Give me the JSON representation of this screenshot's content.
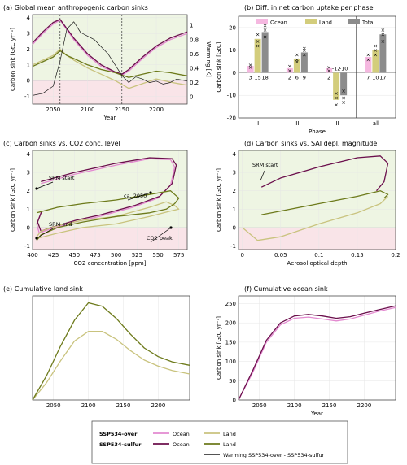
{
  "colors": {
    "ocean_over": "#e38ad0",
    "ocean_sulfur": "#6b0f4c",
    "land_over": "#c9c37e",
    "land_sulfur": "#6d7a1b",
    "warming": "#1a1a1a",
    "bg_green": "#eef5e3",
    "bg_pink": "#f9e4e8",
    "bar_ocean": "#f5b8e0",
    "bar_land": "#d3cd7c",
    "bar_total": "#8c8c8c"
  },
  "chart_data": [
    {
      "panel": "a",
      "type": "line",
      "title": "(a) Global mean anthropogenic carbon sinks",
      "xlabel": "Year",
      "ylabel": "Carbon sink [GtC yr⁻¹]",
      "ylabel_right": "Warming [K]",
      "xlim": [
        2020,
        2245
      ],
      "ylim": [
        -1.5,
        4.2
      ],
      "ylim_right": [
        -0.1,
        1.15
      ],
      "xticks": [
        "2050",
        "2100",
        "2150",
        "2200"
      ],
      "yticks": [
        "-1",
        "0",
        "1",
        "2",
        "3",
        "4"
      ],
      "yticks_right": [
        "0",
        "0.2",
        "0.4",
        "0.6",
        "0.8",
        "1"
      ],
      "vlines": [
        2060,
        2150
      ],
      "series": [
        {
          "name": "Ocean (SSP534-over)",
          "key": "ocean_over",
          "x": [
            2020,
            2035,
            2050,
            2060,
            2080,
            2100,
            2120,
            2140,
            2150,
            2160,
            2180,
            2200,
            2220,
            2245
          ],
          "y": [
            2.3,
            3.0,
            3.6,
            3.85,
            2.6,
            1.6,
            0.9,
            0.5,
            0.35,
            0.6,
            1.4,
            2.1,
            2.6,
            3.0
          ]
        },
        {
          "name": "Ocean (SSP534-sulfur)",
          "key": "ocean_sulfur",
          "x": [
            2020,
            2035,
            2050,
            2060,
            2080,
            2100,
            2120,
            2140,
            2150,
            2160,
            2180,
            2200,
            2220,
            2245
          ],
          "y": [
            2.4,
            3.1,
            3.7,
            3.9,
            2.7,
            1.7,
            1.0,
            0.55,
            0.4,
            0.7,
            1.5,
            2.2,
            2.7,
            3.1
          ]
        },
        {
          "name": "Land (SSP534-over)",
          "key": "land_over",
          "x": [
            2020,
            2035,
            2050,
            2060,
            2070,
            2080,
            2100,
            2120,
            2140,
            2160,
            2180,
            2200,
            2220,
            2245
          ],
          "y": [
            1.0,
            1.3,
            1.6,
            2.0,
            1.6,
            1.3,
            0.8,
            0.4,
            0.0,
            -0.5,
            -0.2,
            0.1,
            -0.1,
            -0.3
          ]
        },
        {
          "name": "Land (SSP534-sulfur)",
          "key": "land_sulfur",
          "x": [
            2020,
            2035,
            2050,
            2060,
            2070,
            2080,
            2100,
            2120,
            2140,
            2160,
            2180,
            2200,
            2220,
            2245
          ],
          "y": [
            0.9,
            1.2,
            1.5,
            1.9,
            1.6,
            1.4,
            1.0,
            0.7,
            0.5,
            0.2,
            0.4,
            0.6,
            0.5,
            0.3
          ]
        },
        {
          "name": "Warming SSP534-over - SSP534-sulfur",
          "key": "warming",
          "axis": "right",
          "x": [
            2020,
            2035,
            2050,
            2060,
            2070,
            2080,
            2090,
            2100,
            2110,
            2120,
            2130,
            2140,
            2150,
            2160,
            2170,
            2180,
            2190,
            2200,
            2210,
            2220,
            2230,
            2245
          ],
          "y": [
            0.02,
            0.05,
            0.15,
            0.5,
            0.95,
            1.05,
            0.9,
            0.85,
            0.8,
            0.7,
            0.6,
            0.45,
            0.3,
            0.2,
            0.28,
            0.25,
            0.2,
            0.22,
            0.18,
            0.2,
            0.25,
            0.22
          ]
        }
      ]
    },
    {
      "panel": "b",
      "type": "bar",
      "title": "(b) Diff. in net carbon uptake per phase",
      "xlabel": "Phase",
      "ylabel": "Carbon sink [GtC]",
      "ylim": [
        -20,
        25
      ],
      "yticks": [
        "-20",
        "-10",
        "0",
        "10",
        "20"
      ],
      "categories": [
        "I",
        "II",
        "III",
        "all"
      ],
      "legend": [
        "Ocean",
        "Land",
        "Total"
      ],
      "series": [
        {
          "name": "Ocean",
          "key": "bar_ocean",
          "values": [
            3,
            2,
            2,
            7
          ],
          "labels": [
            "3",
            "2",
            "2",
            "7"
          ]
        },
        {
          "name": "Land",
          "key": "bar_land",
          "values": [
            15,
            6,
            -12,
            10
          ],
          "labels": [
            "15",
            "6",
            "-12",
            "10"
          ]
        },
        {
          "name": "Total",
          "key": "bar_total",
          "values": [
            18,
            9,
            -10,
            17
          ],
          "labels": [
            "18",
            "9",
            "-10",
            "17"
          ]
        }
      ],
      "markers": [
        [
          [
            3.5,
            2.5
          ],
          [
            12,
            17,
            14
          ],
          [
            16,
            21,
            19
          ]
        ],
        [
          [
            3,
            1
          ],
          [
            5,
            8,
            6
          ],
          [
            8,
            11,
            10
          ]
        ],
        [
          [
            1,
            2.5
          ],
          [
            -9,
            -14,
            -11
          ],
          [
            -8,
            -13,
            -11
          ]
        ],
        [
          [
            6,
            8
          ],
          [
            8,
            12,
            10
          ],
          [
            14,
            19,
            17
          ]
        ]
      ]
    },
    {
      "panel": "c",
      "type": "line",
      "title": "(c) Carbon sinks vs. CO2 conc. level",
      "xlabel": "CO2 concentration [ppm]",
      "ylabel": "Carbon sink [GtC yr⁻¹]",
      "xlim": [
        400,
        585
      ],
      "ylim": [
        -1.2,
        4.2
      ],
      "xticks": [
        "400",
        "425",
        "450",
        "475",
        "500",
        "525",
        "550",
        "575"
      ],
      "yticks": [
        "-1",
        "0",
        "1",
        "2",
        "3",
        "4"
      ],
      "annotations": [
        "SRM start",
        "SRM end",
        "ca. 2050",
        "CO2 peak"
      ],
      "series": [
        {
          "name": "Ocean (SSP534-over)",
          "key": "ocean_over",
          "x": [
            410,
            450,
            500,
            540,
            565,
            570,
            565,
            550,
            520,
            480,
            450,
            420,
            408,
            405,
            410
          ],
          "y": [
            2.4,
            2.9,
            3.4,
            3.75,
            3.7,
            3.3,
            2.3,
            1.6,
            1.1,
            0.6,
            0.3,
            -0.1,
            -0.3,
            0.2,
            0.8
          ]
        },
        {
          "name": "Ocean (SSP534-sulfur)",
          "key": "ocean_sulfur",
          "x": [
            410,
            450,
            500,
            540,
            567,
            572,
            567,
            552,
            522,
            482,
            452,
            422,
            410,
            406,
            411
          ],
          "y": [
            2.5,
            3.0,
            3.5,
            3.8,
            3.75,
            3.4,
            2.4,
            1.7,
            1.2,
            0.7,
            0.4,
            0.0,
            -0.2,
            0.3,
            0.9
          ]
        },
        {
          "name": "Land (SSP534-over)",
          "key": "land_over",
          "x": [
            405,
            430,
            460,
            500,
            540,
            565,
            575,
            570,
            560,
            540,
            500,
            460,
            430,
            410,
            405
          ],
          "y": [
            -0.6,
            -0.3,
            0.0,
            0.2,
            0.6,
            0.9,
            1.0,
            1.2,
            1.4,
            1.1,
            0.6,
            0.4,
            0.1,
            -0.2,
            -0.5
          ]
        },
        {
          "name": "Land (SSP534-sulfur)",
          "key": "land_sulfur",
          "x": [
            405,
            430,
            460,
            500,
            540,
            565,
            575,
            570,
            560,
            540,
            500,
            460,
            430,
            410,
            405
          ],
          "y": [
            0.8,
            1.1,
            1.3,
            1.5,
            1.8,
            2.0,
            1.6,
            1.3,
            1.0,
            0.8,
            0.6,
            0.3,
            0.0,
            -0.4,
            -0.7
          ]
        }
      ]
    },
    {
      "panel": "d",
      "type": "line",
      "title": "(d) Carbon sinks vs. SAI depl. magnitude",
      "xlabel": "Aerosol optical depth",
      "ylabel": "Carbon sink [GtC yr⁻¹]",
      "xlim": [
        -0.005,
        0.2
      ],
      "ylim": [
        -1.2,
        4.2
      ],
      "xticks": [
        "0",
        "0.05",
        "0.1",
        "0.15",
        "0.2"
      ],
      "yticks": [
        "-1",
        "0",
        "1",
        "2",
        "3",
        "4"
      ],
      "annotations": [
        "SRM start"
      ],
      "series": [
        {
          "name": "Ocean (SSP534-sulfur)",
          "key": "ocean_sulfur",
          "x": [
            0.025,
            0.05,
            0.1,
            0.15,
            0.18,
            0.19,
            0.185,
            0.175
          ],
          "y": [
            2.2,
            2.7,
            3.3,
            3.8,
            3.9,
            3.5,
            2.5,
            2.0
          ]
        },
        {
          "name": "Land (SSP534-sulfur)",
          "key": "land_sulfur",
          "x": [
            0.025,
            0.05,
            0.1,
            0.15,
            0.18,
            0.19,
            0.185
          ],
          "y": [
            0.7,
            0.9,
            1.3,
            1.7,
            2.0,
            1.8,
            1.6
          ]
        },
        {
          "name": "Land (SSP534-over)",
          "key": "land_over",
          "x": [
            0.0,
            0.02,
            0.05,
            0.1,
            0.15,
            0.18,
            0.19
          ],
          "y": [
            0.0,
            -0.7,
            -0.5,
            0.2,
            0.8,
            1.3,
            1.7
          ]
        }
      ]
    },
    {
      "panel": "e",
      "type": "line",
      "title": "(e) Cumulative land sink",
      "xlim": [
        2020,
        2245
      ],
      "ylim": [
        0,
        120
      ],
      "xticks": [
        "2050",
        "2100",
        "2150",
        "2200"
      ],
      "yticks": [],
      "series": [
        {
          "name": "Land (SSP534-over)",
          "key": "land_over",
          "x": [
            2020,
            2040,
            2060,
            2080,
            2100,
            2120,
            2140,
            2160,
            2180,
            2200,
            2220,
            2245
          ],
          "y": [
            0,
            20,
            45,
            68,
            79,
            79,
            70,
            57,
            46,
            39,
            34,
            30
          ]
        },
        {
          "name": "Land (SSP534-sulfur)",
          "key": "land_sulfur",
          "x": [
            2020,
            2040,
            2060,
            2080,
            2100,
            2120,
            2140,
            2160,
            2180,
            2200,
            2220,
            2245
          ],
          "y": [
            0,
            28,
            62,
            92,
            112,
            108,
            94,
            76,
            60,
            50,
            44,
            40
          ]
        }
      ]
    },
    {
      "panel": "f",
      "type": "line",
      "title": "(f) Cumulative ocean sink",
      "xlabel": "Year",
      "ylabel": "Carbon sink [GtC yr⁻¹]",
      "xlim": [
        2020,
        2245
      ],
      "ylim": [
        0,
        270
      ],
      "xticks": [
        "2050",
        "2100",
        "2150",
        "2200"
      ],
      "yticks": [
        "0",
        "50",
        "100",
        "150",
        "200",
        "250"
      ],
      "series": [
        {
          "name": "Ocean (SSP534-over)",
          "key": "ocean_over",
          "x": [
            2020,
            2040,
            2060,
            2080,
            2100,
            2120,
            2140,
            2160,
            2180,
            2200,
            2220,
            2245
          ],
          "y": [
            0,
            70,
            150,
            195,
            212,
            215,
            210,
            205,
            210,
            220,
            230,
            240
          ]
        },
        {
          "name": "Ocean (SSP534-sulfur)",
          "key": "ocean_sulfur",
          "x": [
            2020,
            2040,
            2060,
            2080,
            2100,
            2120,
            2140,
            2160,
            2180,
            2200,
            2220,
            2245
          ],
          "y": [
            0,
            75,
            155,
            200,
            218,
            222,
            218,
            212,
            216,
            225,
            234,
            244
          ]
        }
      ]
    }
  ],
  "legend": {
    "over_label": "SSP534-over",
    "sulfur_label": "SSP534-sulfur",
    "ocean": "Ocean",
    "land": "Land",
    "warming": "Warming SSP534-over - SSP534-sulfur"
  }
}
